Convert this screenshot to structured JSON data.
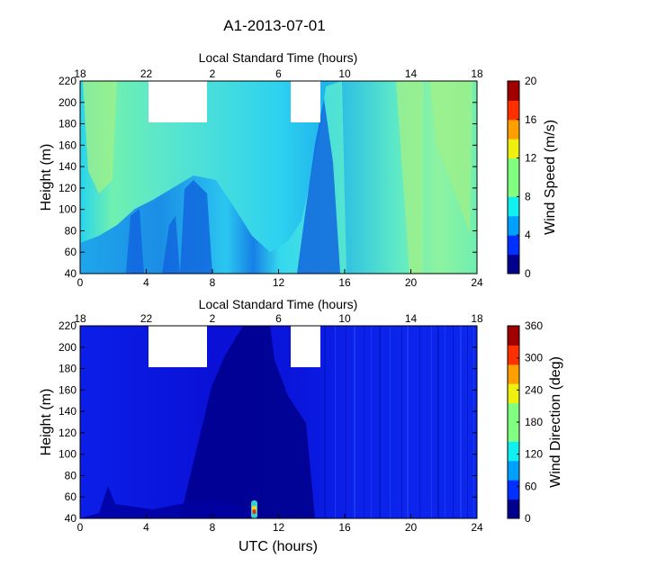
{
  "figure_title": "A1-2013-07-01",
  "chart_data": [
    {
      "type": "heatmap",
      "title": "A1-2013-07-01",
      "top_axis_label": "Local Standard Time (hours)",
      "top_ticks": [
        "18",
        "22",
        "2",
        "6",
        "10",
        "14",
        "18"
      ],
      "xlabel": "",
      "ylabel": "Height (m)",
      "x_ticks": [
        "0",
        "4",
        "8",
        "12",
        "16",
        "20",
        "24"
      ],
      "y_ticks": [
        "40",
        "60",
        "80",
        "100",
        "120",
        "140",
        "160",
        "180",
        "200",
        "220"
      ],
      "xlim": [
        0,
        24
      ],
      "ylim": [
        40,
        220
      ],
      "colorbar_label": "Wind Speed (m/s)",
      "colorbar_ticks": [
        "0",
        "4",
        "8",
        "12",
        "16",
        "20"
      ],
      "colorbar_range": [
        0,
        20
      ],
      "colormap": "jet",
      "missing_data_color": "#ffffff",
      "missing_data_regions": [
        {
          "utc_start": 4.1,
          "utc_end": 6.1,
          "height_min": 180,
          "height_max": 220
        },
        {
          "utc_start": 12.6,
          "utc_end": 13.6,
          "height_min": 180,
          "height_max": 220
        }
      ],
      "approx_values": [
        {
          "utc": 1,
          "height_low": 7,
          "height_high": 10
        },
        {
          "utc": 6,
          "height_low": 5,
          "height_high": 8
        },
        {
          "utc": 11,
          "height_low": 6,
          "height_high": 9
        },
        {
          "utc": 14,
          "height_low": 4,
          "height_high": 6
        },
        {
          "utc": 19,
          "height_low": 8,
          "height_high": 9
        },
        {
          "utc": 22,
          "height_low": 9,
          "height_high": 11
        }
      ]
    },
    {
      "type": "heatmap",
      "top_axis_label": "Local Standard Time (hours)",
      "top_ticks": [
        "18",
        "22",
        "2",
        "6",
        "10",
        "14",
        "18"
      ],
      "xlabel": "UTC (hours)",
      "ylabel": "Height (m)",
      "x_ticks": [
        "0",
        "4",
        "8",
        "12",
        "16",
        "20",
        "24"
      ],
      "y_ticks": [
        "40",
        "60",
        "80",
        "100",
        "120",
        "140",
        "160",
        "180",
        "200",
        "220"
      ],
      "xlim": [
        0,
        24
      ],
      "ylim": [
        40,
        220
      ],
      "colorbar_label": "Wind Direction (deg)",
      "colorbar_ticks": [
        "0",
        "60",
        "120",
        "180",
        "240",
        "300",
        "360"
      ],
      "colorbar_range": [
        0,
        360
      ],
      "colormap": "jet",
      "missing_data_color": "#ffffff",
      "missing_data_regions": [
        {
          "utc_start": 4.1,
          "utc_end": 6.1,
          "height_min": 180,
          "height_max": 220
        },
        {
          "utc_start": 12.6,
          "utc_end": 13.6,
          "height_min": 180,
          "height_max": 220
        }
      ],
      "approx_values": [
        {
          "utc": 2,
          "direction": 40
        },
        {
          "utc": 10,
          "direction": 20
        },
        {
          "utc": 13,
          "direction": 35
        },
        {
          "utc": 20,
          "direction": 40
        }
      ]
    }
  ]
}
